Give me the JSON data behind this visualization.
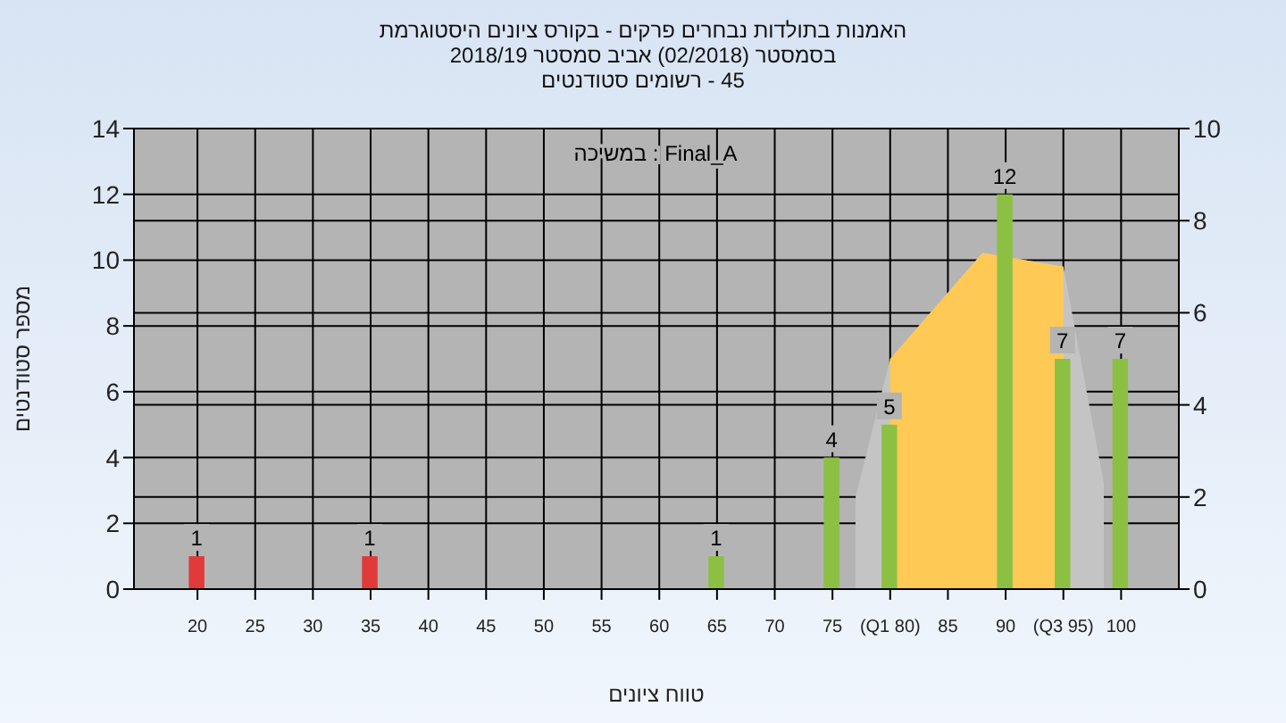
{
  "chart_data": {
    "type": "bar",
    "title": "האמנות בתולדות נבחרים פרקים - בקורס ציונים היסטוגרמת",
    "subtitle": "בסמסטר (02/2018) אביב סמסטר 2018/19\n45 - רשומים סטודנטים",
    "xlabel": "טווח ציונים",
    "ylabel": "מספר סטודנטים",
    "annotations": [
      "Final_A : במשיכה"
    ],
    "series": [
      {
        "type": "area",
        "axis": "y2",
        "color": "#c4c4c4",
        "x": [
          77,
          80,
          88,
          95,
          98.5
        ],
        "values": [
          2,
          5,
          7.3,
          7,
          2.3
        ]
      },
      {
        "type": "area",
        "axis": "y2",
        "color": "#ffc955",
        "x": [
          80,
          88,
          95
        ],
        "values": [
          5,
          7.3,
          7
        ]
      },
      {
        "x": [
          20,
          35,
          65,
          75,
          80,
          90,
          95,
          100
        ],
        "values": [
          1,
          1,
          1,
          4,
          5,
          12,
          7,
          7
        ],
        "value_labels": [
          "1",
          "1",
          "1",
          "4",
          "5",
          "12",
          "7",
          "7"
        ],
        "colors": [
          "#e03a3a",
          "#e03a3a",
          "#8cc043",
          "#8cc043",
          "#8cc043",
          "#8cc043",
          "#8cc043",
          "#8cc043"
        ]
      }
    ],
    "xlim": [
      14.5,
      105
    ],
    "xticks": [
      20,
      25,
      30,
      35,
      40,
      45,
      50,
      55,
      60,
      65,
      70,
      75,
      {
        "value": 80,
        "label": "(Q1 80)"
      },
      85,
      90,
      {
        "value": 95,
        "label": "(Q3 95)"
      },
      100
    ],
    "ylim": [
      0,
      14
    ],
    "yticks": [
      0,
      2,
      4,
      6,
      8,
      10,
      12,
      14
    ],
    "y2lim": [
      0,
      10
    ],
    "y2ticks": [
      0,
      2,
      4,
      6,
      8,
      10
    ],
    "grid": true
  }
}
